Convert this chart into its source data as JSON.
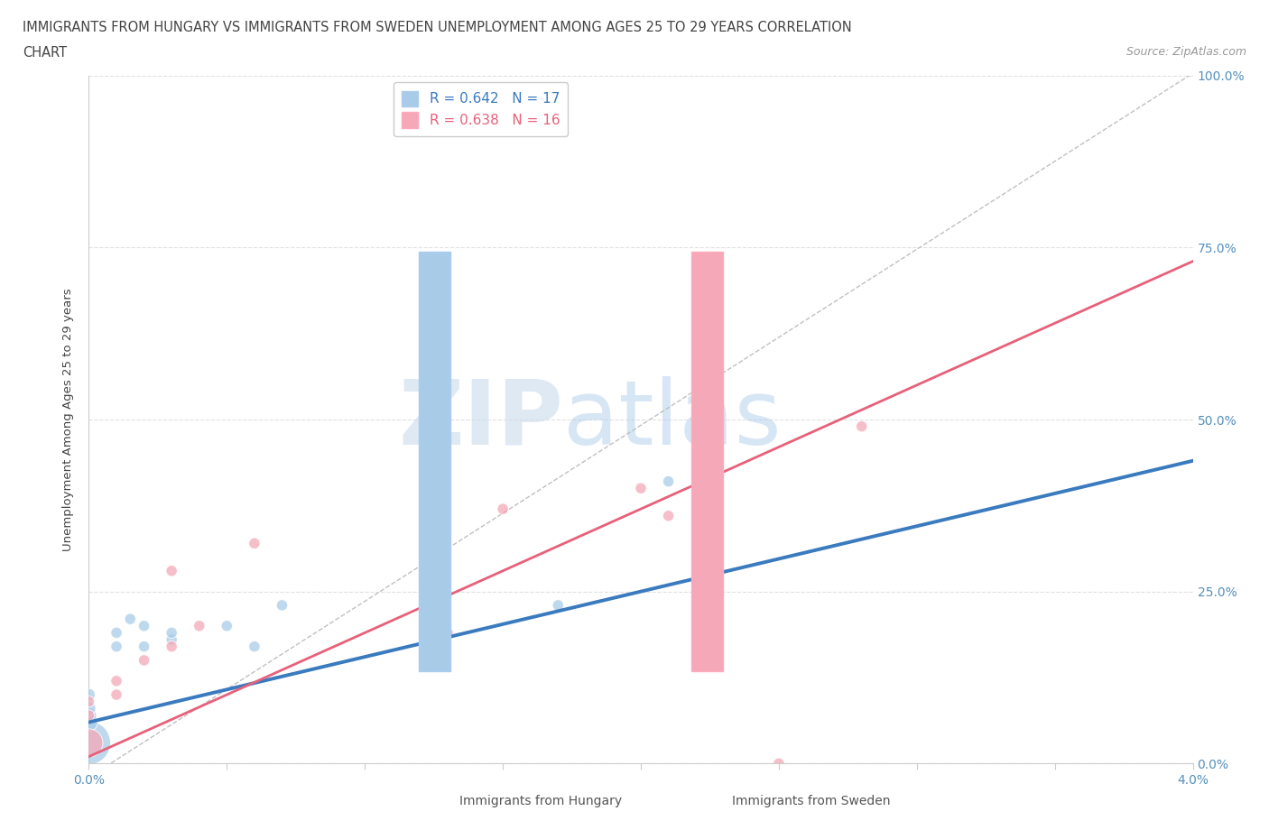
{
  "title_line1": "IMMIGRANTS FROM HUNGARY VS IMMIGRANTS FROM SWEDEN UNEMPLOYMENT AMONG AGES 25 TO 29 YEARS CORRELATION",
  "title_line2": "CHART",
  "source": "Source: ZipAtlas.com",
  "ylabel": "Unemployment Among Ages 25 to 29 years",
  "xlim": [
    0.0,
    0.04
  ],
  "ylim": [
    0.0,
    1.0
  ],
  "xticks": [
    0.0,
    0.005,
    0.01,
    0.015,
    0.02,
    0.025,
    0.03,
    0.035,
    0.04
  ],
  "xticklabels": [
    "0.0%",
    "",
    "",
    "",
    "",
    "",
    "",
    "",
    "4.0%"
  ],
  "yticks": [
    0.0,
    0.25,
    0.5,
    0.75,
    1.0
  ],
  "yticklabels": [
    "0.0%",
    "25.0%",
    "50.0%",
    "75.0%",
    "100.0%"
  ],
  "hungary_R": 0.642,
  "hungary_N": 17,
  "sweden_R": 0.638,
  "sweden_N": 16,
  "hungary_color": "#a8cce8",
  "sweden_color": "#f4a8b8",
  "hungary_line_color": "#3a7abf",
  "sweden_line_color": "#e8607a",
  "dashed_line_color": "#c0c0c0",
  "watermark_zip": "ZIP",
  "watermark_atlas": "atlas",
  "hungary_x": [
    0.0,
    0.0,
    0.0,
    0.0,
    0.0,
    0.001,
    0.001,
    0.0015,
    0.002,
    0.002,
    0.003,
    0.003,
    0.005,
    0.006,
    0.007,
    0.017,
    0.021
  ],
  "hungary_y": [
    0.03,
    0.06,
    0.07,
    0.08,
    0.1,
    0.17,
    0.19,
    0.21,
    0.17,
    0.2,
    0.18,
    0.19,
    0.2,
    0.17,
    0.23,
    0.23,
    0.41
  ],
  "hungary_sizes": [
    1200,
    200,
    150,
    120,
    100,
    80,
    80,
    80,
    80,
    80,
    80,
    80,
    80,
    80,
    80,
    80,
    80
  ],
  "sweden_x": [
    0.0,
    0.0,
    0.0,
    0.001,
    0.001,
    0.002,
    0.003,
    0.003,
    0.004,
    0.006,
    0.013,
    0.015,
    0.02,
    0.021,
    0.025,
    0.028
  ],
  "sweden_y": [
    0.03,
    0.07,
    0.09,
    0.1,
    0.12,
    0.15,
    0.17,
    0.28,
    0.2,
    0.32,
    0.19,
    0.37,
    0.4,
    0.36,
    0.0,
    0.49
  ],
  "sweden_sizes": [
    500,
    80,
    80,
    80,
    80,
    80,
    80,
    80,
    80,
    80,
    80,
    80,
    80,
    80,
    80,
    80
  ],
  "background_color": "#ffffff",
  "grid_color": "#e0e0e0",
  "hungary_line_slope": 9.5,
  "hungary_line_intercept": 0.06,
  "sweden_line_slope": 18.0,
  "sweden_line_intercept": 0.01
}
